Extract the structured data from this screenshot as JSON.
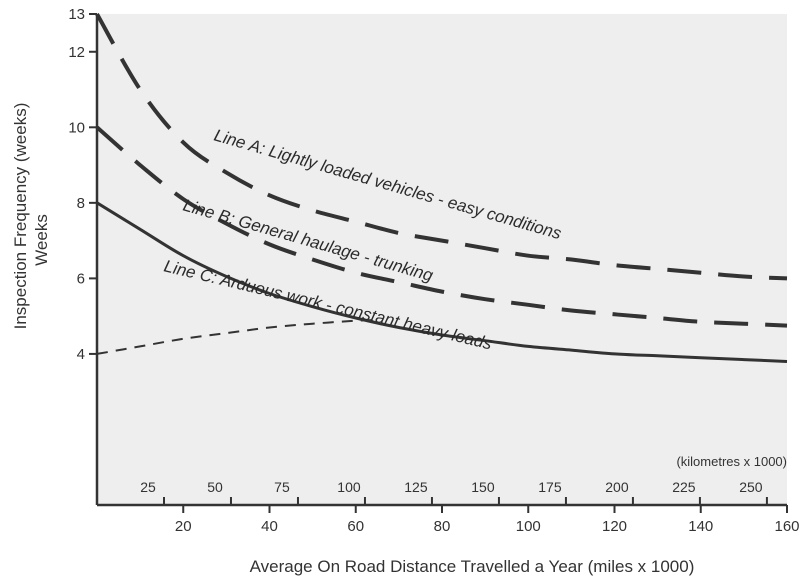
{
  "chart_data": {
    "type": "line",
    "xlabel": "Average On Road Distance Travelled a Year (miles x 1000)",
    "ylabel_line1": "Inspection Frequency (weeks)",
    "ylabel_line2": "Weeks",
    "xlim": [
      0,
      160
    ],
    "ylim": [
      0,
      13
    ],
    "x_ticks": [
      20,
      40,
      60,
      80,
      100,
      120,
      140,
      160
    ],
    "y_ticks": [
      4,
      6,
      8,
      10,
      12,
      13
    ],
    "secondary_axis": {
      "label": "(kilometres x 1000)",
      "ticks": [
        25,
        50,
        75,
        100,
        125,
        150,
        175,
        200,
        225,
        250
      ],
      "miles_per_unit": 0.62137
    },
    "background_color": "#eeeeee",
    "line_color": "#333333",
    "series": [
      {
        "name": "Line A: Lightly loaded vehicles - easy conditions",
        "style": "long-dash",
        "x": [
          0,
          10,
          20,
          30,
          40,
          50,
          60,
          70,
          80,
          90,
          100,
          110,
          120,
          130,
          140,
          150,
          160
        ],
        "y": [
          13.0,
          11.0,
          9.6,
          8.8,
          8.2,
          7.8,
          7.5,
          7.2,
          7.0,
          6.8,
          6.6,
          6.5,
          6.35,
          6.25,
          6.15,
          6.05,
          6.0
        ]
      },
      {
        "name": "Line B: General haulage - trunking",
        "style": "long-dash",
        "x": [
          0,
          10,
          20,
          30,
          40,
          50,
          60,
          70,
          80,
          90,
          100,
          110,
          120,
          130,
          140,
          150,
          160
        ],
        "y": [
          10.0,
          9.0,
          8.1,
          7.45,
          6.9,
          6.5,
          6.15,
          5.9,
          5.65,
          5.45,
          5.3,
          5.15,
          5.05,
          4.95,
          4.85,
          4.8,
          4.75
        ]
      },
      {
        "name": "Line C: Arduous work - constant heavy loads",
        "style": "solid",
        "x": [
          0,
          10,
          20,
          30,
          40,
          50,
          60,
          70,
          80,
          90,
          100,
          110,
          120,
          130,
          140,
          150,
          160
        ],
        "y": [
          8.0,
          7.3,
          6.6,
          6.05,
          5.6,
          5.25,
          4.95,
          4.7,
          4.5,
          4.35,
          4.2,
          4.1,
          4.0,
          3.95,
          3.9,
          3.85,
          3.8
        ]
      },
      {
        "style": "short-dash",
        "x": [
          0,
          10,
          20,
          30,
          40,
          50,
          60,
          65
        ],
        "y": [
          4.0,
          4.2,
          4.4,
          4.55,
          4.7,
          4.8,
          4.88,
          4.9
        ]
      }
    ]
  }
}
